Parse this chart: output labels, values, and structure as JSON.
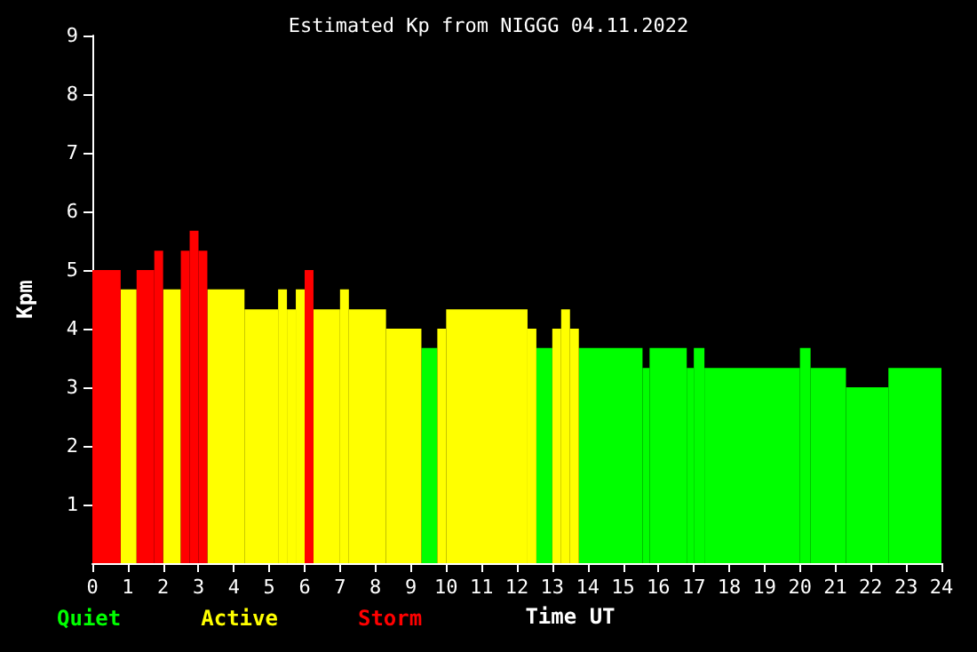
{
  "chart_data": {
    "type": "histogram",
    "title": "Estimated Kp from NIGGG 04.11.2022",
    "xlabel": "Time UT",
    "ylabel": "Kpm",
    "bins": [
      0,
      0.8,
      1.25,
      1.75,
      2,
      2.5,
      2.75,
      3,
      3.25,
      4.3,
      5.25,
      5.5,
      5.75,
      6,
      6.25,
      7,
      7.25,
      8.3,
      9.3,
      9.75,
      10,
      12.3,
      12.55,
      13,
      13.25,
      13.5,
      13.75,
      15.55,
      15.75,
      16.8,
      17,
      17.3,
      20,
      20.3,
      21.3,
      22.5,
      24
    ],
    "series": [
      {
        "name": "Quiet",
        "color": "#00ff00",
        "values": [
          null,
          null,
          null,
          null,
          null,
          null,
          null,
          null,
          null,
          null,
          null,
          null,
          null,
          null,
          null,
          null,
          null,
          null,
          3.67,
          null,
          null,
          null,
          3.67,
          null,
          null,
          null,
          3.67,
          3.33,
          3.67,
          3.33,
          3.67,
          3.33,
          3.67,
          3.33,
          3,
          3.33
        ]
      },
      {
        "name": "Active",
        "color": "#ffff00",
        "values": [
          null,
          4.67,
          null,
          null,
          4.67,
          null,
          null,
          null,
          4.67,
          4.33,
          4.67,
          4.33,
          4.67,
          null,
          4.33,
          4.67,
          4.33,
          4,
          null,
          4,
          4.33,
          4,
          null,
          4,
          4.33,
          4,
          null,
          null,
          null,
          null,
          null,
          null,
          null,
          null,
          null,
          null
        ]
      },
      {
        "name": "Storm",
        "color": "#ff0000",
        "values": [
          5,
          null,
          5,
          5.33,
          null,
          5.33,
          5.67,
          5.33,
          null,
          null,
          null,
          null,
          null,
          5,
          null,
          null,
          null,
          null,
          null,
          null,
          null,
          null,
          null,
          null,
          null,
          null,
          null,
          null,
          null,
          null,
          null,
          null,
          null,
          null,
          null,
          null
        ]
      }
    ],
    "xlim": [
      0,
      24
    ],
    "xticks": [
      0,
      1,
      2,
      3,
      4,
      5,
      6,
      7,
      8,
      9,
      10,
      11,
      12,
      13,
      14,
      15,
      16,
      17,
      18,
      19,
      20,
      21,
      22,
      23,
      24
    ],
    "ylim": [
      0,
      9
    ],
    "yticks": [
      1,
      2,
      3,
      4,
      5,
      6,
      7,
      8,
      9
    ],
    "grid": false,
    "legend": "bottom left"
  }
}
